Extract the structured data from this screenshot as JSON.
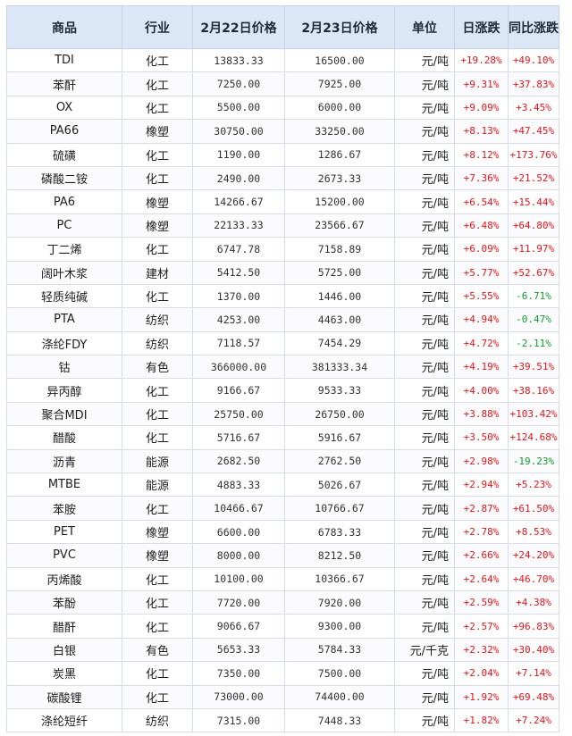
{
  "headers": [
    "商品",
    "行业",
    "2月22日价格",
    "2月23日价格",
    "单位",
    "日涨跌",
    "同比涨跌"
  ],
  "colors": {
    "up": "#e3141a",
    "down": "#0e9d2a",
    "header_bg": "#dbe7f7"
  },
  "rows": [
    {
      "name": "TDI",
      "industry": "化工",
      "price_0222": "13833.33",
      "price_0223": "16500.00",
      "unit": "元/吨",
      "daily": "+19.28%",
      "yoy": "+49.10%",
      "yoy_dir": "up"
    },
    {
      "name": "苯酐",
      "industry": "化工",
      "price_0222": "7250.00",
      "price_0223": "7925.00",
      "unit": "元/吨",
      "daily": "+9.31%",
      "yoy": "+37.83%",
      "yoy_dir": "up"
    },
    {
      "name": "OX",
      "industry": "化工",
      "price_0222": "5500.00",
      "price_0223": "6000.00",
      "unit": "元/吨",
      "daily": "+9.09%",
      "yoy": "+3.45%",
      "yoy_dir": "up"
    },
    {
      "name": "PA66",
      "industry": "橡塑",
      "price_0222": "30750.00",
      "price_0223": "33250.00",
      "unit": "元/吨",
      "daily": "+8.13%",
      "yoy": "+47.45%",
      "yoy_dir": "up"
    },
    {
      "name": "硫磺",
      "industry": "化工",
      "price_0222": "1190.00",
      "price_0223": "1286.67",
      "unit": "元/吨",
      "daily": "+8.12%",
      "yoy": "+173.76%",
      "yoy_dir": "up"
    },
    {
      "name": "磷酸二铵",
      "industry": "化工",
      "price_0222": "2490.00",
      "price_0223": "2673.33",
      "unit": "元/吨",
      "daily": "+7.36%",
      "yoy": "+21.52%",
      "yoy_dir": "up"
    },
    {
      "name": "PA6",
      "industry": "橡塑",
      "price_0222": "14266.67",
      "price_0223": "15200.00",
      "unit": "元/吨",
      "daily": "+6.54%",
      "yoy": "+15.44%",
      "yoy_dir": "up"
    },
    {
      "name": "PC",
      "industry": "橡塑",
      "price_0222": "22133.33",
      "price_0223": "23566.67",
      "unit": "元/吨",
      "daily": "+6.48%",
      "yoy": "+64.80%",
      "yoy_dir": "up"
    },
    {
      "name": "丁二烯",
      "industry": "化工",
      "price_0222": "6747.78",
      "price_0223": "7158.89",
      "unit": "元/吨",
      "daily": "+6.09%",
      "yoy": "+11.97%",
      "yoy_dir": "up"
    },
    {
      "name": "阔叶木浆",
      "industry": "建材",
      "price_0222": "5412.50",
      "price_0223": "5725.00",
      "unit": "元/吨",
      "daily": "+5.77%",
      "yoy": "+52.67%",
      "yoy_dir": "up"
    },
    {
      "name": "轻质纯碱",
      "industry": "化工",
      "price_0222": "1370.00",
      "price_0223": "1446.00",
      "unit": "元/吨",
      "daily": "+5.55%",
      "yoy": "-6.71%",
      "yoy_dir": "down"
    },
    {
      "name": "PTA",
      "industry": "纺织",
      "price_0222": "4253.00",
      "price_0223": "4463.00",
      "unit": "元/吨",
      "daily": "+4.94%",
      "yoy": "-0.47%",
      "yoy_dir": "down"
    },
    {
      "name": "涤纶FDY",
      "industry": "纺织",
      "price_0222": "7118.57",
      "price_0223": "7454.29",
      "unit": "元/吨",
      "daily": "+4.72%",
      "yoy": "-2.11%",
      "yoy_dir": "down"
    },
    {
      "name": "钴",
      "industry": "有色",
      "price_0222": "366000.00",
      "price_0223": "381333.34",
      "unit": "元/吨",
      "daily": "+4.19%",
      "yoy": "+39.51%",
      "yoy_dir": "up"
    },
    {
      "name": "异丙醇",
      "industry": "化工",
      "price_0222": "9166.67",
      "price_0223": "9533.33",
      "unit": "元/吨",
      "daily": "+4.00%",
      "yoy": "+38.16%",
      "yoy_dir": "up"
    },
    {
      "name": "聚合MDI",
      "industry": "化工",
      "price_0222": "25750.00",
      "price_0223": "26750.00",
      "unit": "元/吨",
      "daily": "+3.88%",
      "yoy": "+103.42%",
      "yoy_dir": "up"
    },
    {
      "name": "醋酸",
      "industry": "化工",
      "price_0222": "5716.67",
      "price_0223": "5916.67",
      "unit": "元/吨",
      "daily": "+3.50%",
      "yoy": "+124.68%",
      "yoy_dir": "up"
    },
    {
      "name": "沥青",
      "industry": "能源",
      "price_0222": "2682.50",
      "price_0223": "2762.50",
      "unit": "元/吨",
      "daily": "+2.98%",
      "yoy": "-19.23%",
      "yoy_dir": "down"
    },
    {
      "name": "MTBE",
      "industry": "能源",
      "price_0222": "4883.33",
      "price_0223": "5026.67",
      "unit": "元/吨",
      "daily": "+2.94%",
      "yoy": "+5.23%",
      "yoy_dir": "up"
    },
    {
      "name": "苯胺",
      "industry": "化工",
      "price_0222": "10466.67",
      "price_0223": "10766.67",
      "unit": "元/吨",
      "daily": "+2.87%",
      "yoy": "+61.50%",
      "yoy_dir": "up"
    },
    {
      "name": "PET",
      "industry": "橡塑",
      "price_0222": "6600.00",
      "price_0223": "6783.33",
      "unit": "元/吨",
      "daily": "+2.78%",
      "yoy": "+8.53%",
      "yoy_dir": "up"
    },
    {
      "name": "PVC",
      "industry": "橡塑",
      "price_0222": "8000.00",
      "price_0223": "8212.50",
      "unit": "元/吨",
      "daily": "+2.66%",
      "yoy": "+24.20%",
      "yoy_dir": "up"
    },
    {
      "name": "丙烯酸",
      "industry": "化工",
      "price_0222": "10100.00",
      "price_0223": "10366.67",
      "unit": "元/吨",
      "daily": "+2.64%",
      "yoy": "+46.70%",
      "yoy_dir": "up"
    },
    {
      "name": "苯酚",
      "industry": "化工",
      "price_0222": "7720.00",
      "price_0223": "7920.00",
      "unit": "元/吨",
      "daily": "+2.59%",
      "yoy": "+4.38%",
      "yoy_dir": "up"
    },
    {
      "name": "醋酐",
      "industry": "化工",
      "price_0222": "9066.67",
      "price_0223": "9300.00",
      "unit": "元/吨",
      "daily": "+2.57%",
      "yoy": "+96.83%",
      "yoy_dir": "up"
    },
    {
      "name": "白银",
      "industry": "有色",
      "price_0222": "5653.33",
      "price_0223": "5784.33",
      "unit": "元/千克",
      "daily": "+2.32%",
      "yoy": "+30.40%",
      "yoy_dir": "up"
    },
    {
      "name": "炭黑",
      "industry": "化工",
      "price_0222": "7350.00",
      "price_0223": "7500.00",
      "unit": "元/吨",
      "daily": "+2.04%",
      "yoy": "+7.14%",
      "yoy_dir": "up"
    },
    {
      "name": "碳酸锂",
      "industry": "化工",
      "price_0222": "73000.00",
      "price_0223": "74400.00",
      "unit": "元/吨",
      "daily": "+1.92%",
      "yoy": "+69.48%",
      "yoy_dir": "up"
    },
    {
      "name": "涤纶短纤",
      "industry": "纺织",
      "price_0222": "7315.00",
      "price_0223": "7448.33",
      "unit": "元/吨",
      "daily": "+1.82%",
      "yoy": "+7.24%",
      "yoy_dir": "up"
    }
  ]
}
